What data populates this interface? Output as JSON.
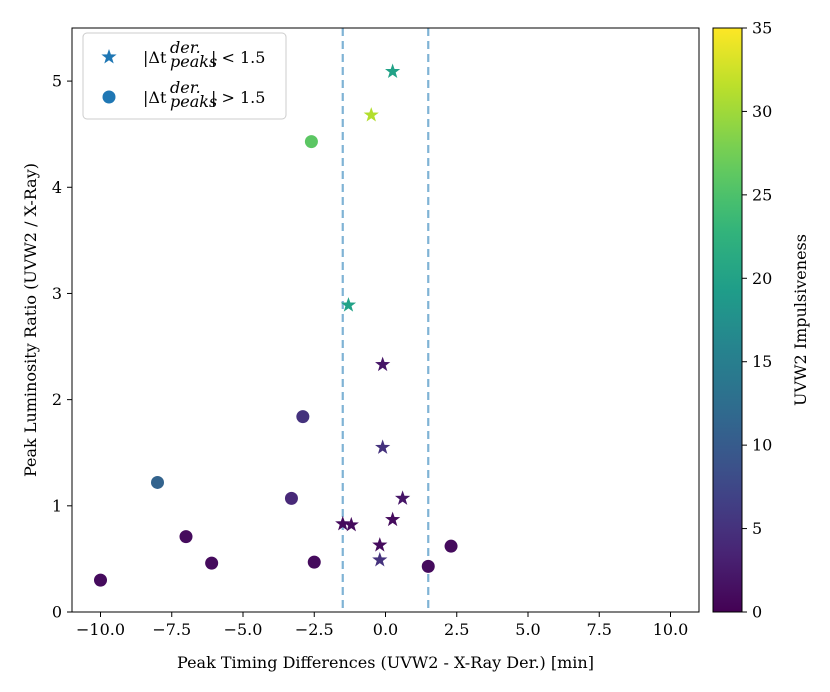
{
  "chart_data": {
    "type": "scatter",
    "xlabel": "Peak Timing Differences (UVW2 - X-Ray Der.) [min]",
    "ylabel": "Peak Luminosity Ratio (UVW2 / X-Ray)",
    "xlim": [
      -11.0,
      11.0
    ],
    "ylim": [
      0,
      5.5
    ],
    "xticks": [
      -10.0,
      -7.5,
      -5.0,
      -2.5,
      0.0,
      2.5,
      5.0,
      7.5,
      10.0
    ],
    "xtick_labels": [
      "−10.0",
      "−7.5",
      "−5.0",
      "−2.5",
      "0.0",
      "2.5",
      "5.0",
      "7.5",
      "10.0"
    ],
    "yticks": [
      0,
      1,
      2,
      3,
      4,
      5
    ],
    "ytick_labels": [
      "0",
      "1",
      "2",
      "3",
      "4",
      "5"
    ],
    "grid": false,
    "vlines": [
      {
        "x": -1.5,
        "color": "#7fb3d5",
        "style": "dashed"
      },
      {
        "x": 1.5,
        "color": "#7fb3d5",
        "style": "dashed"
      }
    ],
    "colorbar": {
      "label": "UVW2 Impulsiveness",
      "colormap": "viridis",
      "range": [
        0,
        35
      ],
      "ticks": [
        0,
        5,
        10,
        15,
        20,
        25,
        30,
        35
      ],
      "tick_labels": [
        "0",
        "5",
        "10",
        "15",
        "20",
        "25",
        "30",
        "35"
      ]
    },
    "legend": {
      "placement": "top-left",
      "entries": [
        {
          "marker": "star",
          "label_main": "|Δt",
          "label_sup": "der.",
          "label_sub": "peaks",
          "label_tail": "| < 1.5",
          "color": "#1f77b4"
        },
        {
          "marker": "circle",
          "label_main": "|Δt",
          "label_sup": "der.",
          "label_sub": "peaks",
          "label_tail": "| > 1.5",
          "color": "#1f77b4"
        }
      ]
    },
    "series": [
      {
        "name": "|Δt_peaks^der.| < 1.5",
        "marker": "star",
        "points": [
          {
            "x": 0.25,
            "y": 5.09,
            "c": 20
          },
          {
            "x": -0.5,
            "y": 4.68,
            "c": 31
          },
          {
            "x": -1.3,
            "y": 2.89,
            "c": 20
          },
          {
            "x": -0.1,
            "y": 2.33,
            "c": 2
          },
          {
            "x": -0.1,
            "y": 1.55,
            "c": 5
          },
          {
            "x": 0.6,
            "y": 1.07,
            "c": 2
          },
          {
            "x": 0.25,
            "y": 0.87,
            "c": 1
          },
          {
            "x": -1.5,
            "y": 0.83,
            "c": 1
          },
          {
            "x": -1.2,
            "y": 0.82,
            "c": 1
          },
          {
            "x": -0.2,
            "y": 0.63,
            "c": 1
          },
          {
            "x": -0.2,
            "y": 0.49,
            "c": 5
          }
        ]
      },
      {
        "name": "|Δt_peaks^der.| > 1.5",
        "marker": "circle",
        "points": [
          {
            "x": -2.6,
            "y": 4.43,
            "c": 26
          },
          {
            "x": -2.9,
            "y": 1.84,
            "c": 5
          },
          {
            "x": -3.3,
            "y": 1.07,
            "c": 4
          },
          {
            "x": -8.0,
            "y": 1.22,
            "c": 11
          },
          {
            "x": -7.0,
            "y": 0.71,
            "c": 1
          },
          {
            "x": -6.1,
            "y": 0.46,
            "c": 1
          },
          {
            "x": -2.5,
            "y": 0.47,
            "c": 1
          },
          {
            "x": -10.0,
            "y": 0.3,
            "c": 1
          },
          {
            "x": 1.5,
            "y": 0.43,
            "c": 1
          },
          {
            "x": 2.3,
            "y": 0.62,
            "c": 1
          }
        ]
      }
    ]
  }
}
